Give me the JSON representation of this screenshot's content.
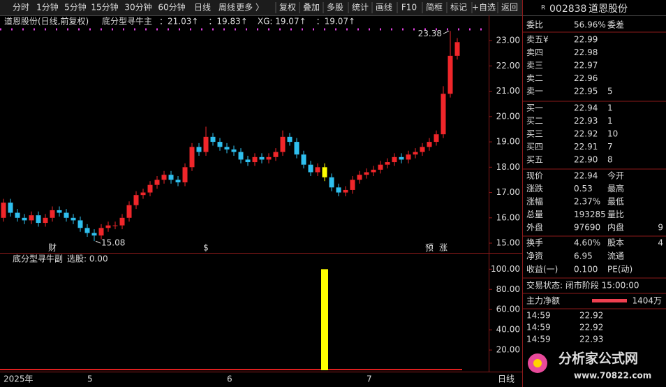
{
  "toolbar": {
    "periods": [
      "分时",
      "1分钟",
      "5分钟",
      "15分钟",
      "30分钟",
      "60分钟",
      "日线",
      "周线",
      "更多 〉"
    ],
    "actions": [
      "复权",
      "叠加",
      "多股",
      "统计",
      "画线",
      "F10",
      "简框",
      "标记",
      "+自选",
      "返回"
    ]
  },
  "chart_data": [
    {
      "type": "candlestick",
      "title": "道恩股份(日线,前复权)",
      "indicator": "底分型寻牛主",
      "legend": [
        {
          "text": "：21.03↑",
          "color": "#ffffff"
        },
        {
          "text": "：19.83↑",
          "color": "#ffff00"
        },
        {
          "text": "XG: 19.07↑",
          "color": "#00ff00"
        },
        {
          "text": "：19.07↑",
          "color": "#ff4040"
        }
      ],
      "categories": [
        "2025年",
        null,
        null,
        null,
        null,
        null,
        null,
        null,
        null,
        null,
        null,
        null,
        "5",
        null,
        null,
        null,
        null,
        null,
        null,
        null,
        null,
        null,
        null,
        null,
        null,
        null,
        null,
        null,
        null,
        null,
        null,
        null,
        "6",
        null,
        null,
        null,
        null,
        null,
        null,
        null,
        null,
        null,
        null,
        null,
        null,
        null,
        null,
        null,
        null,
        null,
        null,
        null,
        "7",
        null,
        null,
        null,
        null,
        null,
        null,
        null,
        null,
        null,
        null,
        null,
        null,
        null
      ],
      "events": [
        null,
        null,
        null,
        null,
        null,
        null,
        null,
        "财",
        null,
        null,
        null,
        null,
        null,
        null,
        null,
        null,
        null,
        null,
        null,
        null,
        null,
        null,
        null,
        null,
        null,
        null,
        null,
        null,
        null,
        "$",
        null,
        null,
        null,
        null,
        null,
        null,
        null,
        null,
        null,
        null,
        null,
        null,
        null,
        null,
        null,
        null,
        null,
        null,
        null,
        null,
        null,
        null,
        null,
        null,
        null,
        null,
        null,
        null,
        null,
        null,
        null,
        "预",
        null,
        "涨",
        null,
        null
      ],
      "open": [
        16.0,
        16.6,
        16.2,
        16.0,
        15.9,
        16.1,
        15.8,
        16.0,
        16.3,
        16.2,
        16.0,
        15.9,
        15.6,
        15.4,
        15.3,
        15.6,
        15.7,
        15.7,
        16.0,
        16.5,
        16.9,
        17.0,
        17.3,
        17.5,
        17.7,
        17.5,
        17.4,
        18.0,
        18.8,
        18.6,
        19.2,
        19.0,
        18.8,
        18.7,
        18.6,
        18.3,
        18.2,
        18.4,
        18.3,
        18.4,
        18.6,
        19.2,
        19.0,
        18.5,
        18.1,
        17.8,
        18.0,
        17.6,
        17.2,
        17.0,
        17.1,
        17.5,
        17.7,
        17.8,
        17.9,
        18.1,
        18.2,
        18.4,
        18.3,
        18.5,
        18.6,
        18.8,
        19.0,
        19.3,
        20.9,
        22.4
      ],
      "high": [
        16.75,
        16.75,
        16.35,
        16.15,
        16.25,
        16.25,
        16.15,
        16.45,
        16.45,
        16.35,
        16.15,
        16.05,
        15.75,
        15.55,
        15.75,
        15.85,
        15.85,
        16.15,
        16.65,
        17.05,
        17.15,
        17.45,
        17.65,
        17.85,
        17.85,
        17.65,
        18.15,
        18.95,
        18.95,
        19.6,
        19.35,
        19.15,
        18.95,
        18.85,
        18.75,
        18.45,
        18.55,
        18.55,
        18.55,
        18.75,
        19.45,
        19.35,
        19.15,
        18.65,
        18.25,
        18.15,
        18.15,
        17.75,
        17.35,
        17.25,
        17.65,
        17.85,
        17.95,
        18.05,
        18.25,
        18.35,
        18.55,
        18.55,
        18.65,
        18.75,
        18.95,
        19.15,
        19.45,
        21.2,
        23.38,
        23.1
      ],
      "low": [
        15.85,
        16.05,
        15.85,
        15.75,
        15.75,
        15.65,
        15.65,
        15.85,
        16.05,
        15.85,
        15.75,
        15.45,
        15.25,
        15.08,
        15.15,
        15.45,
        15.55,
        15.55,
        15.85,
        16.35,
        16.75,
        16.85,
        17.15,
        17.35,
        17.35,
        17.25,
        17.25,
        17.85,
        18.45,
        18.45,
        18.85,
        18.65,
        18.55,
        18.45,
        18.15,
        18.05,
        18.05,
        18.15,
        18.15,
        18.25,
        18.45,
        18.85,
        18.35,
        17.95,
        17.65,
        17.65,
        17.45,
        17.05,
        16.85,
        16.85,
        16.95,
        17.35,
        17.55,
        17.65,
        17.75,
        17.95,
        18.05,
        18.15,
        18.15,
        18.35,
        18.45,
        18.65,
        18.85,
        19.15,
        20.75,
        22.25
      ],
      "close": [
        16.6,
        16.2,
        16.0,
        15.9,
        16.1,
        15.8,
        16.0,
        16.3,
        16.2,
        16.0,
        15.9,
        15.6,
        15.4,
        15.3,
        15.6,
        15.7,
        15.7,
        16.0,
        16.5,
        16.9,
        17.0,
        17.3,
        17.5,
        17.7,
        17.5,
        17.4,
        18.0,
        18.8,
        18.6,
        19.2,
        19.0,
        18.8,
        18.7,
        18.6,
        18.3,
        18.2,
        18.4,
        18.3,
        18.4,
        18.6,
        19.2,
        19.0,
        18.5,
        18.1,
        17.8,
        18.0,
        17.6,
        17.2,
        17.0,
        17.1,
        17.5,
        17.7,
        17.8,
        17.9,
        18.1,
        18.2,
        18.4,
        18.3,
        18.5,
        18.6,
        18.8,
        19.0,
        19.3,
        20.9,
        22.4,
        22.94
      ],
      "up_color": "#f0262a",
      "down_color": "#2fbfee",
      "signal_color": "#ffff00",
      "ylim": [
        14.67,
        23.5
      ],
      "yticks": [
        {
          "value": 15,
          "label": "15.00"
        },
        {
          "value": 16,
          "label": "16.00"
        },
        {
          "value": 17,
          "label": "17.00"
        },
        {
          "value": 18,
          "label": "18.00"
        },
        {
          "value": 19,
          "label": "19.00"
        },
        {
          "value": 20,
          "label": "20.00"
        },
        {
          "value": 21,
          "label": "21.00"
        },
        {
          "value": 22,
          "label": "22.00"
        },
        {
          "value": 23,
          "label": "23.00"
        }
      ]
    },
    {
      "type": "bar",
      "title": "底分型寻牛副",
      "subtitle": "选股: 0.00",
      "color": "#ffff00",
      "values": [
        0,
        0,
        0,
        0,
        0,
        0,
        0,
        0,
        0,
        0,
        0,
        0,
        0,
        0,
        0,
        0,
        0,
        0,
        0,
        0,
        0,
        0,
        0,
        0,
        0,
        0,
        0,
        0,
        0,
        0,
        0,
        0,
        0,
        0,
        0,
        0,
        0,
        0,
        0,
        0,
        0,
        0,
        0,
        0,
        0,
        0,
        100,
        0,
        0,
        0,
        0,
        0,
        0,
        0,
        0,
        0,
        0,
        0,
        0,
        0,
        0,
        0,
        0,
        0,
        0,
        0
      ],
      "ylim": [
        0,
        112
      ],
      "yticks": [
        {
          "value": 20,
          "label": "20.00"
        },
        {
          "value": 40,
          "label": "40.00"
        },
        {
          "value": 60,
          "label": "60.00"
        },
        {
          "value": 80,
          "label": "80.00"
        },
        {
          "value": 100,
          "label": "100.00"
        }
      ]
    }
  ],
  "quote": {
    "badge": "R",
    "code": "002838",
    "name": "道恩股份",
    "ratio": [
      "委比",
      "56.96%",
      "委差"
    ],
    "asks": [
      [
        "卖五¥",
        "22.99"
      ],
      [
        "卖四",
        "22.98"
      ],
      [
        "卖三",
        "22.97"
      ],
      [
        "卖二",
        "22.96"
      ],
      [
        "卖一",
        "22.95",
        "5"
      ]
    ],
    "bids": [
      [
        "买一",
        "22.94",
        "1"
      ],
      [
        "买二",
        "22.93",
        "1"
      ],
      [
        "买三",
        "22.92",
        "10"
      ],
      [
        "买四",
        "22.91",
        "7"
      ],
      [
        "买五",
        "22.90",
        "8"
      ]
    ],
    "stats": [
      [
        "现价",
        "22.94",
        "今开"
      ],
      [
        "涨跌",
        "0.53",
        "最高"
      ],
      [
        "涨幅",
        "2.37%",
        "最低"
      ],
      [
        "总量",
        "193285",
        "量比"
      ],
      [
        "外盘",
        "97690",
        "内盘",
        "9"
      ]
    ],
    "stats2": [
      [
        "换手",
        "4.60%",
        "股本",
        "4"
      ],
      [
        "净资",
        "6.95",
        "流通"
      ],
      [
        "收益(一)",
        "0.100",
        "PE(动)"
      ]
    ],
    "status": "交易状态: 闭市阶段 15:00:00",
    "flow": [
      "主力净额",
      "1404万"
    ],
    "trades": [
      [
        "14:59",
        "22.92"
      ],
      [
        "14:59",
        "22.92"
      ],
      [
        "14:59",
        "22.93"
      ]
    ]
  },
  "period": "日线",
  "watermark": {
    "title": "分析家公式网",
    "url": "www.70822.com"
  }
}
